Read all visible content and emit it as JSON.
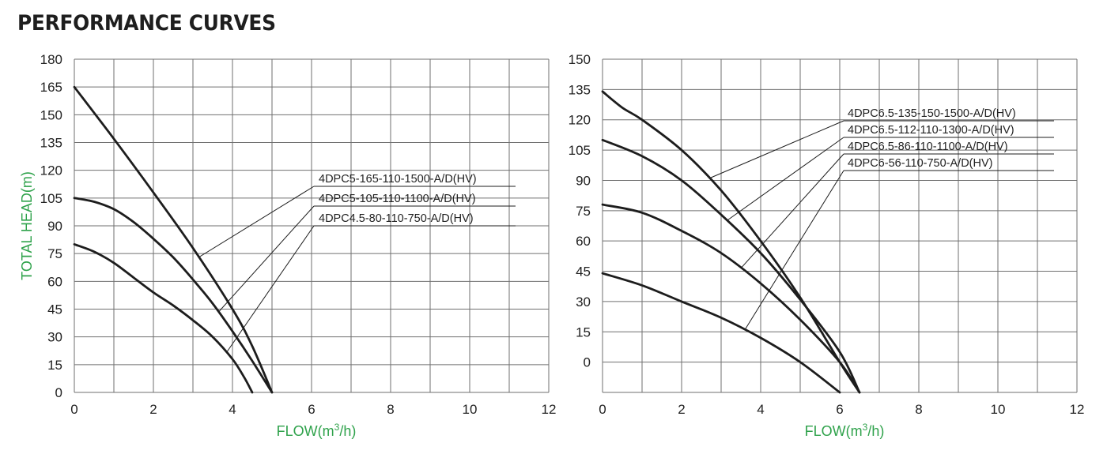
{
  "page": {
    "title": "PERFORMANCE CURVES"
  },
  "colors": {
    "axis_label": "#2fa24b",
    "curve": "#1d1d1d",
    "grid": "#6f6f6f"
  },
  "chart_data": [
    {
      "type": "line",
      "xlabel": "FLOW(m³/h)",
      "ylabel": "TOTAL HEAD(m)",
      "xlim": [
        0,
        12
      ],
      "ylim": [
        0,
        180
      ],
      "x_ticks": [
        0,
        2,
        4,
        6,
        8,
        10,
        12
      ],
      "y_ticks": [
        0,
        15,
        30,
        45,
        60,
        75,
        90,
        105,
        120,
        135,
        150,
        165,
        180
      ],
      "grid": true,
      "series": [
        {
          "name": "4DPC5-165-110-1500-A/D(HV)",
          "x": [
            0,
            1,
            2,
            3,
            4,
            4.5,
            5
          ],
          "y": [
            165,
            137,
            108,
            78,
            45,
            25,
            0
          ]
        },
        {
          "name": "4DPC5-105-110-1100-A/D(HV)",
          "x": [
            0,
            0.5,
            1,
            1.5,
            2,
            2.5,
            3,
            3.5,
            4,
            4.5,
            5
          ],
          "y": [
            105,
            103,
            99,
            92,
            83,
            73,
            61,
            48,
            33,
            17,
            0
          ]
        },
        {
          "name": "4DPC4.5-80-110-750-A/D(HV)",
          "x": [
            0,
            0.5,
            1,
            1.5,
            2,
            2.5,
            3,
            3.5,
            4,
            4.3,
            4.5
          ],
          "y": [
            80,
            76,
            70,
            62,
            54,
            47,
            39,
            30,
            18,
            8,
            0
          ]
        }
      ]
    },
    {
      "type": "line",
      "xlabel": "FLOW(m³/h)",
      "ylabel": "",
      "xlim": [
        0,
        12
      ],
      "ylim": [
        -15,
        150
      ],
      "x_ticks": [
        0,
        2,
        4,
        6,
        8,
        10,
        12
      ],
      "y_ticks": [
        0,
        15,
        30,
        45,
        60,
        75,
        90,
        105,
        120,
        135,
        150
      ],
      "grid": true,
      "series": [
        {
          "name": "4DPC6.5-135-150-1500-A/D(HV)",
          "x": [
            0,
            0.5,
            1,
            2,
            3,
            4,
            5,
            6,
            6.5
          ],
          "y": [
            134,
            126,
            120,
            105,
            85,
            60,
            32,
            0,
            -15
          ]
        },
        {
          "name": "4DPC6.5-112-110-1300-A/D(HV)",
          "x": [
            0,
            1,
            2,
            3,
            4,
            5,
            6,
            6.5
          ],
          "y": [
            110,
            102,
            90,
            73,
            54,
            31,
            5,
            -15
          ]
        },
        {
          "name": "4DPC6.5-86-110-1100-A/D(HV)",
          "x": [
            0,
            1,
            2,
            3,
            4,
            5,
            6,
            6.5
          ],
          "y": [
            78,
            74,
            65,
            54,
            39,
            21,
            0,
            -15
          ]
        },
        {
          "name": "4DPC6-56-110-750-A/D(HV)",
          "x": [
            0,
            1,
            2,
            3,
            4,
            5,
            6
          ],
          "y": [
            44,
            38,
            30,
            22,
            12,
            0,
            -15
          ]
        }
      ]
    }
  ]
}
